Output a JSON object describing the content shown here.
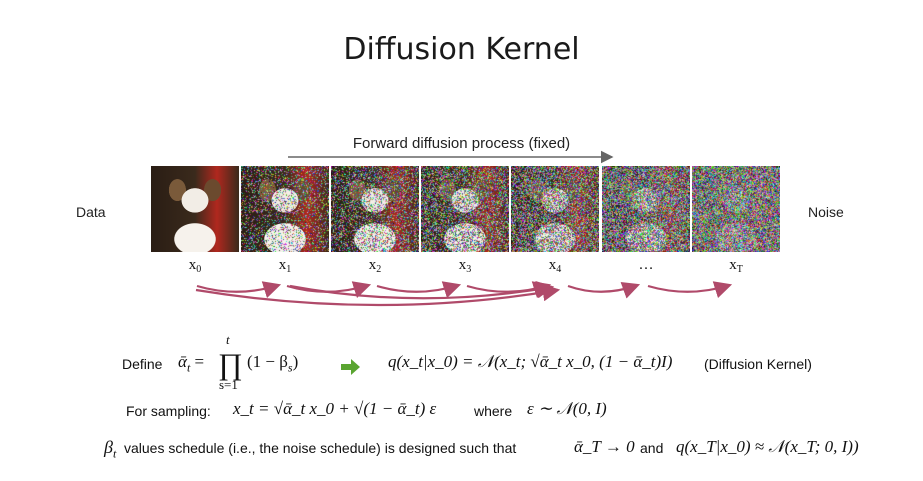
{
  "title": "Diffusion Kernel",
  "forward_label": "Forward diffusion process (fixed)",
  "left_label": "Data",
  "right_label": "Noise",
  "frames": [
    {
      "label_base": "x",
      "label_sub": "0",
      "noise": 0.0
    },
    {
      "label_base": "x",
      "label_sub": "1",
      "noise": 0.35
    },
    {
      "label_base": "x",
      "label_sub": "2",
      "noise": 0.5
    },
    {
      "label_base": "x",
      "label_sub": "3",
      "noise": 0.62
    },
    {
      "label_base": "x",
      "label_sub": "4",
      "noise": 0.74
    },
    {
      "label_base": "…",
      "label_sub": "",
      "noise": 0.88
    },
    {
      "label_base": "x",
      "label_sub": "T",
      "noise": 1.0
    }
  ],
  "colors": {
    "arrow": "#b04a6a",
    "forward_arrow": "#666666",
    "green_arrow": "#5aa531"
  },
  "define": {
    "define_word": "Define",
    "alphabar": "ᾱ",
    "t_sub": "t",
    "equals": "=",
    "prod_top": "t",
    "prod_bottom": "s=1",
    "prod_body": "(1 − β",
    "s_sub": "s",
    "close": ")",
    "kernel_formula": "q(x_t|x_0) = 𝒩(x_t; √ᾱ_t x_0, (1 − ᾱ_t)I)",
    "kernel_tag": "(Diffusion Kernel)"
  },
  "sampling": {
    "label": "For sampling:",
    "formula": "x_t = √ᾱ_t x_0 + √(1 − ᾱ_t) ε",
    "where": "where",
    "eps_formula": "ε ∼ 𝒩(0, I)"
  },
  "schedule": {
    "beta": "β",
    "beta_sub": "t",
    "text": "values schedule (i.e., the noise schedule) is designed such that",
    "limit": "ᾱ_T → 0",
    "and": "and",
    "approx": "q(x_T|x_0) ≈ 𝒩(x_T; 0, I))"
  }
}
